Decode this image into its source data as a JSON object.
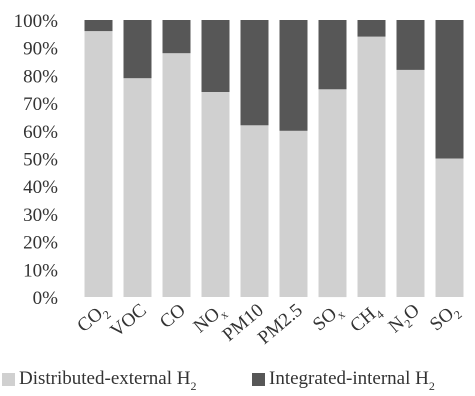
{
  "chart_data": {
    "type": "bar",
    "stacked": true,
    "percent": true,
    "ylim": [
      0,
      100
    ],
    "yticks": [
      "0%",
      "10%",
      "20%",
      "30%",
      "40%",
      "50%",
      "60%",
      "70%",
      "80%",
      "90%",
      "100%"
    ],
    "categories": [
      {
        "base": "CO",
        "sub": "2"
      },
      {
        "base": "VOC",
        "sub": ""
      },
      {
        "base": "CO",
        "sub": ""
      },
      {
        "base": "NO",
        "sub": "x"
      },
      {
        "base": "PM10",
        "sub": ""
      },
      {
        "base": "PM2.5",
        "sub": ""
      },
      {
        "base": "SO",
        "sub": "x"
      },
      {
        "base": "CH",
        "sub": "4"
      },
      {
        "base": "N",
        "sub": "2",
        "tail": "O"
      },
      {
        "base": "SO",
        "sub": "2"
      }
    ],
    "series": [
      {
        "name": "Distributed-external H2",
        "label_base": "Distributed-external H",
        "label_sub": "2",
        "color": "#d0d0d0",
        "values": [
          96,
          79,
          88,
          74,
          62,
          60,
          75,
          94,
          82,
          50
        ]
      },
      {
        "name": "Integrated-internal H2",
        "label_base": "Integrated-internal H",
        "label_sub": "2",
        "color": "#575757",
        "values": [
          4,
          21,
          12,
          26,
          38,
          40,
          25,
          6,
          18,
          50
        ]
      }
    ],
    "grid": false,
    "legend_position": "bottom"
  }
}
